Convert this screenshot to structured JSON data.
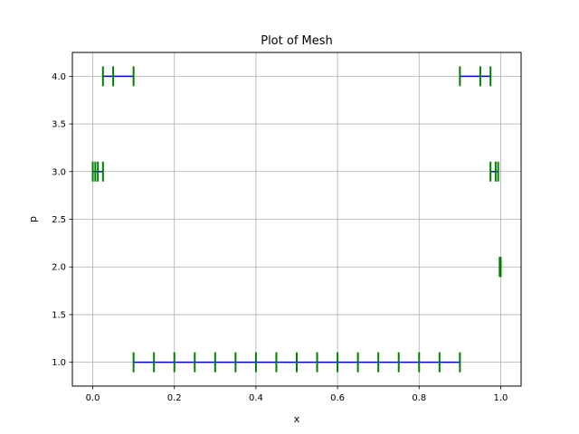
{
  "chart_data": {
    "type": "line",
    "title": "Plot of Mesh",
    "xlabel": "x",
    "ylabel": "p",
    "xlim": [
      -0.05,
      1.05
    ],
    "ylim": [
      0.75,
      4.25
    ],
    "xticks": [
      0.0,
      0.2,
      0.4,
      0.6,
      0.8,
      1.0
    ],
    "xtick_labels": [
      "0.0",
      "0.2",
      "0.4",
      "0.6",
      "0.8",
      "1.0"
    ],
    "yticks": [
      1.0,
      1.5,
      2.0,
      2.5,
      3.0,
      3.5,
      4.0
    ],
    "ytick_labels": [
      "1.0",
      "1.5",
      "2.0",
      "2.5",
      "3.0",
      "3.5",
      "4.0"
    ],
    "grid": true,
    "line_color": "#0000cc",
    "marker_color": "#008000",
    "marker": "vertical-tick",
    "series": [
      {
        "y": 1.0,
        "x": [
          0.1,
          0.15,
          0.2,
          0.25,
          0.3,
          0.35,
          0.4,
          0.45,
          0.5,
          0.55,
          0.6,
          0.65,
          0.7,
          0.75,
          0.8,
          0.85,
          0.9
        ]
      },
      {
        "y": 2.0,
        "x": [
          0.9975,
          0.9988,
          1.0
        ]
      },
      {
        "y": 3.0,
        "x": [
          0.0,
          0.00625,
          0.0125,
          0.025
        ]
      },
      {
        "y": 3.0,
        "x": [
          0.975,
          0.9875,
          0.99375
        ]
      },
      {
        "y": 4.0,
        "x": [
          0.025,
          0.05,
          0.1
        ]
      },
      {
        "y": 4.0,
        "x": [
          0.9,
          0.95,
          0.975
        ]
      }
    ]
  }
}
